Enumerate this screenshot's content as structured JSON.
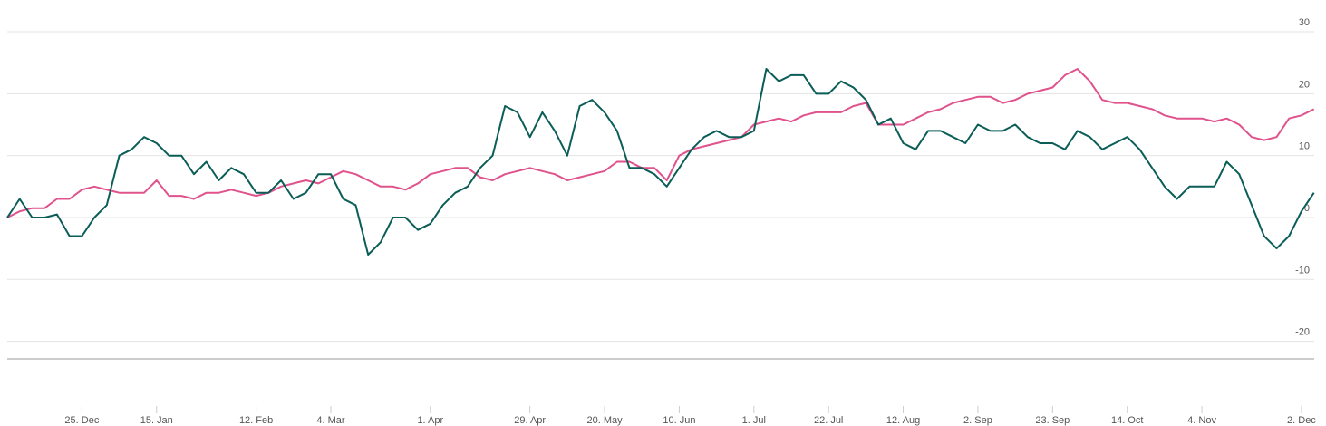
{
  "chart_data": {
    "type": "line",
    "categories": [
      null,
      null,
      null,
      null,
      null,
      null,
      "25. Dec",
      null,
      null,
      null,
      null,
      null,
      "15. Jan",
      null,
      null,
      null,
      null,
      null,
      null,
      null,
      "12. Feb",
      null,
      null,
      null,
      null,
      null,
      "4. Mar",
      null,
      null,
      null,
      null,
      null,
      null,
      null,
      "1. Apr",
      null,
      null,
      null,
      null,
      null,
      null,
      null,
      "29. Apr",
      null,
      null,
      null,
      null,
      null,
      "20. May",
      null,
      null,
      null,
      null,
      null,
      "10. Jun",
      null,
      null,
      null,
      null,
      null,
      "1. Jul",
      null,
      null,
      null,
      null,
      null,
      "22. Jul",
      null,
      null,
      null,
      null,
      null,
      "12. Aug",
      null,
      null,
      null,
      null,
      null,
      "2. Sep",
      null,
      null,
      null,
      null,
      null,
      "23. Sep",
      null,
      null,
      null,
      null,
      null,
      "14. Oct",
      null,
      null,
      null,
      null,
      null,
      "4. Nov",
      null,
      null,
      null,
      null,
      null,
      null,
      null,
      "2. Dec",
      null
    ],
    "series": [
      {
        "color": "#e0528c",
        "values": [
          0,
          1,
          1.5,
          1.5,
          3,
          3,
          4.5,
          5,
          4.5,
          4,
          4,
          4,
          6,
          3.5,
          3.5,
          3,
          4,
          4,
          4.5,
          4,
          3.5,
          4,
          5,
          5.5,
          6,
          5.5,
          6.5,
          7.5,
          7,
          6,
          5,
          5,
          4.5,
          5.5,
          7,
          7.5,
          8,
          8,
          6.5,
          6,
          7,
          7.5,
          8,
          7.5,
          7,
          6,
          6.5,
          7,
          7.5,
          9,
          9,
          8,
          8,
          6,
          10,
          11,
          11.5,
          12,
          12.5,
          13,
          15,
          15.5,
          16,
          15.5,
          16.5,
          17,
          17,
          17,
          18,
          18.5,
          15,
          15,
          15,
          16,
          17,
          17.5,
          18.5,
          19,
          19.5,
          19.5,
          18.5,
          19,
          20,
          20.5,
          21,
          23,
          24,
          22,
          19,
          18.5,
          18.5,
          18,
          17.5,
          16.5,
          16,
          16,
          16,
          15.5,
          16,
          15,
          13,
          12.5,
          13,
          16,
          16.5,
          17.5
        ]
      },
      {
        "color": "#0b5d57",
        "values": [
          0,
          3,
          0,
          0,
          0.5,
          -3,
          -3,
          0,
          2,
          10,
          11,
          13,
          12,
          10,
          10,
          7,
          9,
          6,
          8,
          7,
          4,
          4,
          6,
          3,
          4,
          7,
          7,
          3,
          2,
          -6,
          -4,
          0,
          0,
          -2,
          -1,
          2,
          4,
          5,
          8,
          10,
          18,
          17,
          13,
          17,
          14,
          10,
          18,
          19,
          17,
          14,
          8,
          8,
          7,
          5,
          8,
          11,
          13,
          14,
          13,
          13,
          14,
          24,
          22,
          23,
          23,
          20,
          20,
          22,
          21,
          19,
          15,
          16,
          12,
          11,
          14,
          14,
          13,
          12,
          15,
          14,
          14,
          15,
          13,
          12,
          12,
          11,
          14,
          13,
          11,
          12,
          13,
          11,
          8,
          5,
          3,
          5,
          5,
          5,
          9,
          7,
          2,
          -3,
          -5,
          -3,
          1,
          4
        ]
      }
    ],
    "ylim": [
      -23,
      32
    ],
    "yticks": [
      -20,
      -10,
      0,
      10,
      20,
      30
    ],
    "grid": true
  }
}
